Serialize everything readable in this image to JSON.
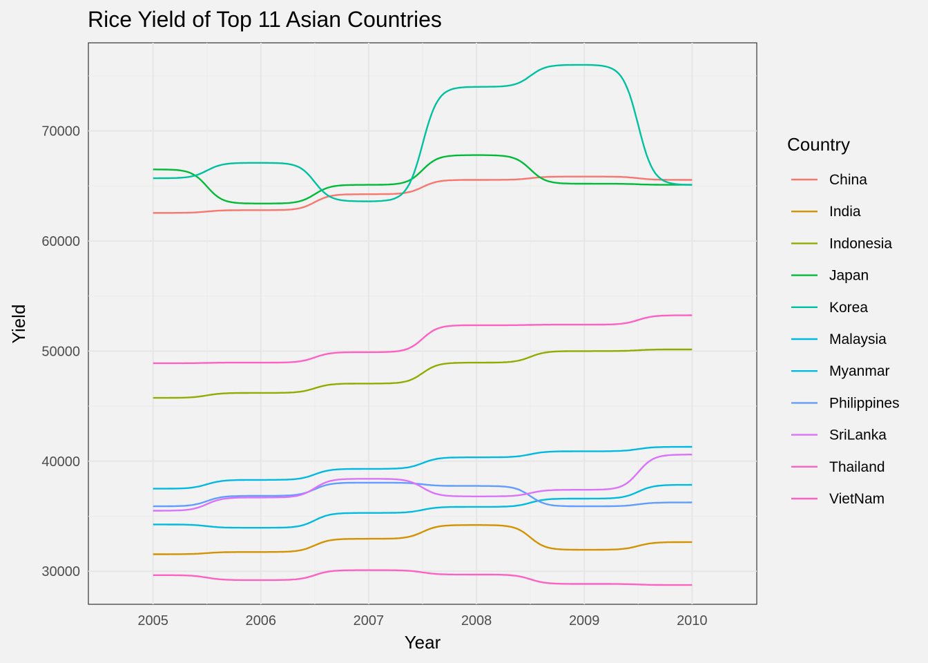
{
  "chart_data": {
    "type": "line",
    "title": "Rice Yield of Top 11 Asian Countries",
    "xlabel": "Year",
    "ylabel": "Yield",
    "x": [
      2005,
      2006,
      2007,
      2008,
      2009,
      2010
    ],
    "xlim": [
      2004.4,
      2010.6
    ],
    "ylim": [
      27000,
      78000
    ],
    "y_ticks": [
      30000,
      40000,
      50000,
      60000,
      70000
    ],
    "grid": true,
    "legend_title": "Country",
    "legend_position": "right",
    "series": [
      {
        "name": "China",
        "color": "#F8766D",
        "values": [
          62550,
          62800,
          64250,
          65550,
          65850,
          65550
        ]
      },
      {
        "name": "India",
        "color": "#D39200",
        "values": [
          31550,
          31750,
          32950,
          34200,
          31950,
          32650
        ]
      },
      {
        "name": "Indonesia",
        "color": "#93AA00",
        "values": [
          45750,
          46200,
          47050,
          48950,
          50000,
          50150
        ]
      },
      {
        "name": "Japan",
        "color": "#00BA38",
        "values": [
          66500,
          63400,
          65100,
          67800,
          65200,
          65100
        ]
      },
      {
        "name": "Korea",
        "color": "#00C19F",
        "values": [
          65700,
          67100,
          63600,
          74000,
          76000,
          65100
        ]
      },
      {
        "name": "Malaysia",
        "color": "#00BAE0",
        "values": [
          34250,
          33950,
          35300,
          35850,
          36600,
          37850
        ]
      },
      {
        "name": "Myanmar",
        "color": "#00B9E3",
        "values": [
          37500,
          38300,
          39300,
          40350,
          40900,
          41300
        ]
      },
      {
        "name": "Philippines",
        "color": "#619CFF",
        "values": [
          35900,
          36850,
          38050,
          37750,
          35900,
          36250
        ]
      },
      {
        "name": "SriLanka",
        "color": "#DB72FB",
        "values": [
          35500,
          36700,
          38400,
          36800,
          37400,
          40600
        ]
      },
      {
        "name": "Thailand",
        "color": "#FF61C3",
        "values": [
          29650,
          29200,
          30100,
          29700,
          28850,
          28750
        ]
      },
      {
        "name": "VietNam",
        "color": "#FF61C3",
        "values": [
          48900,
          48950,
          49900,
          52350,
          52400,
          53250
        ]
      }
    ]
  }
}
